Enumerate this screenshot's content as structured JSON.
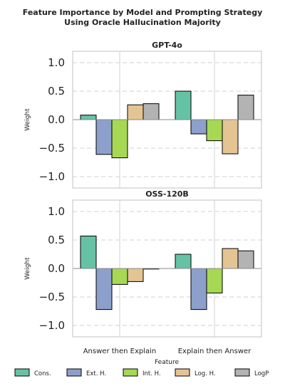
{
  "figure": {
    "title_line1": "Feature Importance by Model and Prompting Strategy",
    "title_line2": "Using Oracle Hallucination Majority"
  },
  "chart_data": [
    {
      "type": "bar",
      "title": "GPT-4o",
      "categories": [
        "Answer then Explain",
        "Explain then Answer"
      ],
      "xlabel": "",
      "ylabel": "Weight",
      "ylim": [
        -1.2,
        1.2
      ],
      "yticks": [
        -1.0,
        -0.5,
        0.0,
        0.5,
        1.0
      ],
      "ytick_labels": [
        "−1.0",
        "−0.5",
        "0.0",
        "0.5",
        "1.0"
      ],
      "grid": true,
      "series": [
        {
          "name": "Cons.",
          "values": [
            0.08,
            0.5
          ]
        },
        {
          "name": "Ext. H.",
          "values": [
            -0.61,
            -0.25
          ]
        },
        {
          "name": "Int. H.",
          "values": [
            -0.67,
            -0.37
          ]
        },
        {
          "name": "Log. H.",
          "values": [
            0.26,
            -0.6
          ]
        },
        {
          "name": "LogP",
          "values": [
            0.28,
            0.43
          ]
        }
      ]
    },
    {
      "type": "bar",
      "title": "OSS-120B",
      "categories": [
        "Answer then Explain",
        "Explain then Answer"
      ],
      "xlabel": "Feature",
      "ylabel": "Weight",
      "ylim": [
        -1.2,
        1.2
      ],
      "yticks": [
        -1.0,
        -0.5,
        0.0,
        0.5,
        1.0
      ],
      "ytick_labels": [
        "−1.0",
        "−0.5",
        "0.0",
        "0.5",
        "1.0"
      ],
      "grid": true,
      "series": [
        {
          "name": "Cons.",
          "values": [
            0.57,
            0.25
          ]
        },
        {
          "name": "Ext. H.",
          "values": [
            -0.72,
            -0.72
          ]
        },
        {
          "name": "Int. H.",
          "values": [
            -0.28,
            -0.43
          ]
        },
        {
          "name": "Log. H.",
          "values": [
            -0.23,
            0.35
          ]
        },
        {
          "name": "LogP",
          "values": [
            -0.01,
            0.31
          ]
        }
      ]
    }
  ],
  "legend": {
    "placement": "bottom",
    "entries": [
      {
        "name": "Cons.",
        "color": "#66c2a5"
      },
      {
        "name": "Ext. H.",
        "color": "#8da0cb"
      },
      {
        "name": "Int. H.",
        "color": "#a6d854"
      },
      {
        "name": "Log. H.",
        "color": "#e5c494"
      },
      {
        "name": "LogP",
        "color": "#b3b3b3"
      }
    ]
  },
  "colors": {
    "series": [
      "#66c2a5",
      "#8da0cb",
      "#a6d854",
      "#e5c494",
      "#b3b3b3"
    ],
    "grid": "#d9d9d9",
    "axes_frame": "#cccccc",
    "zero_line": "#888888"
  }
}
